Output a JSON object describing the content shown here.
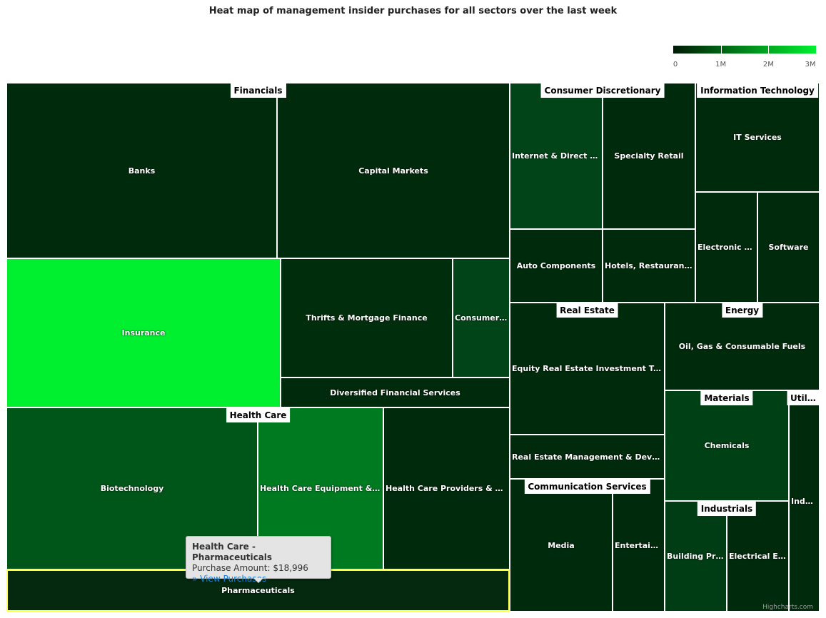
{
  "chart_data": {
    "type": "treemap",
    "title": "Heat map of management insider purchases for all sectors over the last week",
    "color_axis": {
      "min": 0,
      "max": 3000000,
      "ticks": [
        "0",
        "1M",
        "2M",
        "3M"
      ],
      "min_color": "#001a06",
      "max_color": "#00f030",
      "placement": "top-right"
    },
    "groups": [
      {
        "name": "Financials",
        "cells": [
          {
            "name": "Banks",
            "color": "#002a0c"
          },
          {
            "name": "Capital Markets",
            "color": "#002a0c"
          },
          {
            "name": "Insurance",
            "color": "#00f030"
          },
          {
            "name": "Thrifts & Mortgage Finance",
            "color": "#002e0d"
          },
          {
            "name": "Consumer F…",
            "color": "#004418"
          },
          {
            "name": "Diversified Financial Services",
            "color": "#002a0c"
          }
        ]
      },
      {
        "name": "Health Care",
        "cells": [
          {
            "name": "Biotechnology",
            "color": "#005518"
          },
          {
            "name": "Health Care Equipment & Su…",
            "color": "#007a20"
          },
          {
            "name": "Health Care Providers & Serv…",
            "color": "#002a0c"
          },
          {
            "name": "Pharmaceuticals",
            "color": "#05290f"
          }
        ]
      },
      {
        "name": "Consumer Discretionary",
        "cells": [
          {
            "name": "Internet & Direct Ma…",
            "color": "#004418"
          },
          {
            "name": "Specialty Retail",
            "color": "#002a0c"
          },
          {
            "name": "Auto Components",
            "color": "#002a0c"
          },
          {
            "name": "Hotels, Restaurants …",
            "color": "#002a0c"
          }
        ]
      },
      {
        "name": "Information Technology",
        "cells": [
          {
            "name": "IT Services",
            "color": "#002a0c"
          },
          {
            "name": "Electronic Eq…",
            "color": "#002a0c"
          },
          {
            "name": "Software",
            "color": "#002a0c"
          }
        ]
      },
      {
        "name": "Real Estate",
        "cells": [
          {
            "name": "Equity Real Estate Investment Trusts",
            "color": "#002a0c"
          },
          {
            "name": "Real Estate Management & Develop…",
            "color": "#002a0c"
          }
        ]
      },
      {
        "name": "Communication Services",
        "cells": [
          {
            "name": "Media",
            "color": "#002a0c"
          },
          {
            "name": "Entertain…",
            "color": "#002a0c"
          }
        ]
      },
      {
        "name": "Energy",
        "cells": [
          {
            "name": "Oil, Gas & Consumable Fuels",
            "color": "#002a0c"
          }
        ]
      },
      {
        "name": "Materials",
        "cells": [
          {
            "name": "Chemicals",
            "color": "#004015"
          }
        ]
      },
      {
        "name": "Industrials",
        "cells": [
          {
            "name": "Building Pro…",
            "color": "#003d14"
          },
          {
            "name": "Electrical Eq…",
            "color": "#002a0c"
          }
        ]
      },
      {
        "name": "Utilit…",
        "cells": [
          {
            "name": "Indep…",
            "color": "#002a0c"
          }
        ]
      }
    ]
  },
  "tooltip": {
    "title": "Health Care - Pharmaceuticals",
    "amount": "Purchase Amount: $18,996",
    "link": "» View Purchases"
  },
  "credits": "Highcharts.com"
}
